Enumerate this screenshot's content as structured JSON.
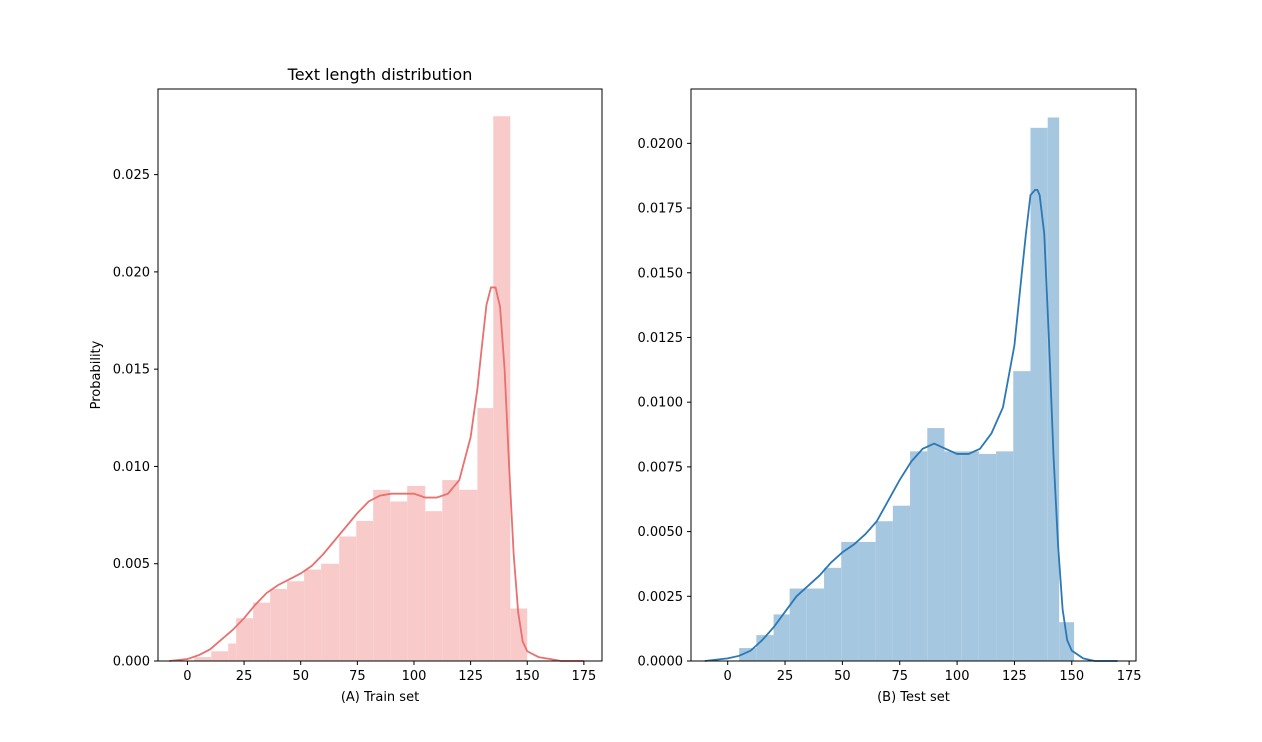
{
  "chart_data": [
    {
      "type": "histogram-with-kde",
      "title": "Text length distribution",
      "xlabel": "(A) Train set",
      "ylabel": "Probability",
      "xlim": [
        -13,
        183
      ],
      "ylim": [
        0,
        0.0294
      ],
      "xticks": [
        0,
        25,
        50,
        75,
        100,
        125,
        150,
        175
      ],
      "yticks": [
        0.0,
        0.005,
        0.01,
        0.015,
        0.02,
        0.025
      ],
      "ytick_labels": [
        "0.000",
        "0.005",
        "0.010",
        "0.015",
        "0.020",
        "0.025"
      ],
      "grid": false,
      "colors": {
        "bar": "#f8cbca",
        "line": "#e8706e"
      },
      "bins": [
        {
          "x0": 3,
          "x1": 10.5,
          "value": 0.0002
        },
        {
          "x0": 10.5,
          "x1": 18,
          "value": 0.0005
        },
        {
          "x0": 18,
          "x1": 21.5,
          "value": 0.0009
        },
        {
          "x0": 21.5,
          "x1": 29,
          "value": 0.0022
        },
        {
          "x0": 29,
          "x1": 36.5,
          "value": 0.003
        },
        {
          "x0": 36.5,
          "x1": 44,
          "value": 0.0037
        },
        {
          "x0": 44,
          "x1": 51.5,
          "value": 0.0041
        },
        {
          "x0": 51.5,
          "x1": 59,
          "value": 0.0047
        },
        {
          "x0": 59,
          "x1": 67,
          "value": 0.005
        },
        {
          "x0": 67,
          "x1": 74.5,
          "value": 0.0064
        },
        {
          "x0": 74.5,
          "x1": 82,
          "value": 0.0072
        },
        {
          "x0": 82,
          "x1": 89.5,
          "value": 0.0088
        },
        {
          "x0": 89.5,
          "x1": 97,
          "value": 0.0082
        },
        {
          "x0": 97,
          "x1": 105,
          "value": 0.009
        },
        {
          "x0": 105,
          "x1": 112.5,
          "value": 0.0077
        },
        {
          "x0": 112.5,
          "x1": 120,
          "value": 0.0093
        },
        {
          "x0": 120,
          "x1": 128,
          "value": 0.0088
        },
        {
          "x0": 128,
          "x1": 135,
          "value": 0.013
        },
        {
          "x0": 135,
          "x1": 142.5,
          "value": 0.028
        },
        {
          "x0": 142.5,
          "x1": 150,
          "value": 0.0027
        }
      ],
      "kde": {
        "x": [
          -8,
          0,
          5,
          10,
          15,
          20,
          25,
          30,
          35,
          40,
          45,
          50,
          55,
          60,
          65,
          70,
          75,
          80,
          85,
          90,
          95,
          100,
          105,
          110,
          115,
          120,
          125,
          128,
          130,
          132,
          134,
          136,
          138,
          140,
          142,
          144,
          146,
          148,
          150,
          155,
          160,
          165,
          170,
          175
        ],
        "y": [
          0.0,
          0.0001,
          0.0003,
          0.0006,
          0.0011,
          0.0016,
          0.0022,
          0.0029,
          0.0035,
          0.0039,
          0.0042,
          0.0045,
          0.0049,
          0.0055,
          0.0062,
          0.0069,
          0.0076,
          0.0082,
          0.0085,
          0.0086,
          0.0086,
          0.0086,
          0.0084,
          0.0084,
          0.0086,
          0.0093,
          0.0115,
          0.014,
          0.0162,
          0.0183,
          0.0192,
          0.0192,
          0.0182,
          0.015,
          0.01,
          0.0055,
          0.0025,
          0.001,
          0.0005,
          0.0002,
          0.0001,
          0.0,
          0.0,
          0.0
        ]
      }
    },
    {
      "type": "histogram-with-kde",
      "title": "",
      "xlabel": "(B) Test set",
      "ylabel": "",
      "xlim": [
        -16,
        178
      ],
      "ylim": [
        0,
        0.0221
      ],
      "xticks": [
        0,
        25,
        50,
        75,
        100,
        125,
        150,
        175
      ],
      "yticks": [
        0.0,
        0.0025,
        0.005,
        0.0075,
        0.01,
        0.0125,
        0.015,
        0.0175,
        0.02
      ],
      "ytick_labels": [
        "0.0000",
        "0.0025",
        "0.0050",
        "0.0075",
        "0.0100",
        "0.0125",
        "0.0150",
        "0.0175",
        "0.0200"
      ],
      "grid": false,
      "colors": {
        "bar": "#a6c7e0",
        "line": "#2b78b5"
      },
      "bins": [
        {
          "x0": 5,
          "x1": 12.5,
          "value": 0.0005
        },
        {
          "x0": 12.5,
          "x1": 20,
          "value": 0.001
        },
        {
          "x0": 20,
          "x1": 27,
          "value": 0.0018
        },
        {
          "x0": 27,
          "x1": 34.5,
          "value": 0.0028
        },
        {
          "x0": 34.5,
          "x1": 42,
          "value": 0.0028
        },
        {
          "x0": 42,
          "x1": 49.5,
          "value": 0.0036
        },
        {
          "x0": 49.5,
          "x1": 57,
          "value": 0.0046
        },
        {
          "x0": 57,
          "x1": 64.5,
          "value": 0.0046
        },
        {
          "x0": 64.5,
          "x1": 72,
          "value": 0.0054
        },
        {
          "x0": 72,
          "x1": 79.5,
          "value": 0.006
        },
        {
          "x0": 79.5,
          "x1": 87,
          "value": 0.0081
        },
        {
          "x0": 87,
          "x1": 94.5,
          "value": 0.009
        },
        {
          "x0": 94.5,
          "x1": 102,
          "value": 0.0081
        },
        {
          "x0": 102,
          "x1": 109.5,
          "value": 0.0081
        },
        {
          "x0": 109.5,
          "x1": 117,
          "value": 0.008
        },
        {
          "x0": 117,
          "x1": 124.5,
          "value": 0.0081
        },
        {
          "x0": 124.5,
          "x1": 132,
          "value": 0.0112
        },
        {
          "x0": 132,
          "x1": 139.5,
          "value": 0.0206
        },
        {
          "x0": 139.5,
          "x1": 144.5,
          "value": 0.021
        },
        {
          "x0": 144.5,
          "x1": 151,
          "value": 0.0015
        }
      ],
      "kde": {
        "x": [
          -10,
          0,
          5,
          10,
          15,
          20,
          25,
          30,
          35,
          40,
          45,
          50,
          55,
          60,
          65,
          70,
          75,
          80,
          85,
          90,
          95,
          100,
          105,
          110,
          115,
          120,
          125,
          128,
          130,
          132,
          134,
          135,
          136,
          138,
          140,
          142,
          144,
          146,
          148,
          150,
          155,
          160,
          165,
          170
        ],
        "y": [
          0.0,
          0.0001,
          0.0002,
          0.0004,
          0.0008,
          0.0013,
          0.0019,
          0.0025,
          0.0029,
          0.0033,
          0.0038,
          0.0042,
          0.0045,
          0.0049,
          0.0054,
          0.0062,
          0.007,
          0.0077,
          0.0082,
          0.0084,
          0.0082,
          0.008,
          0.008,
          0.0082,
          0.0088,
          0.0098,
          0.0122,
          0.0148,
          0.0165,
          0.018,
          0.0182,
          0.0182,
          0.018,
          0.0165,
          0.0125,
          0.008,
          0.0045,
          0.002,
          0.0008,
          0.0004,
          0.0001,
          0.0,
          0.0,
          0.0
        ]
      }
    }
  ]
}
